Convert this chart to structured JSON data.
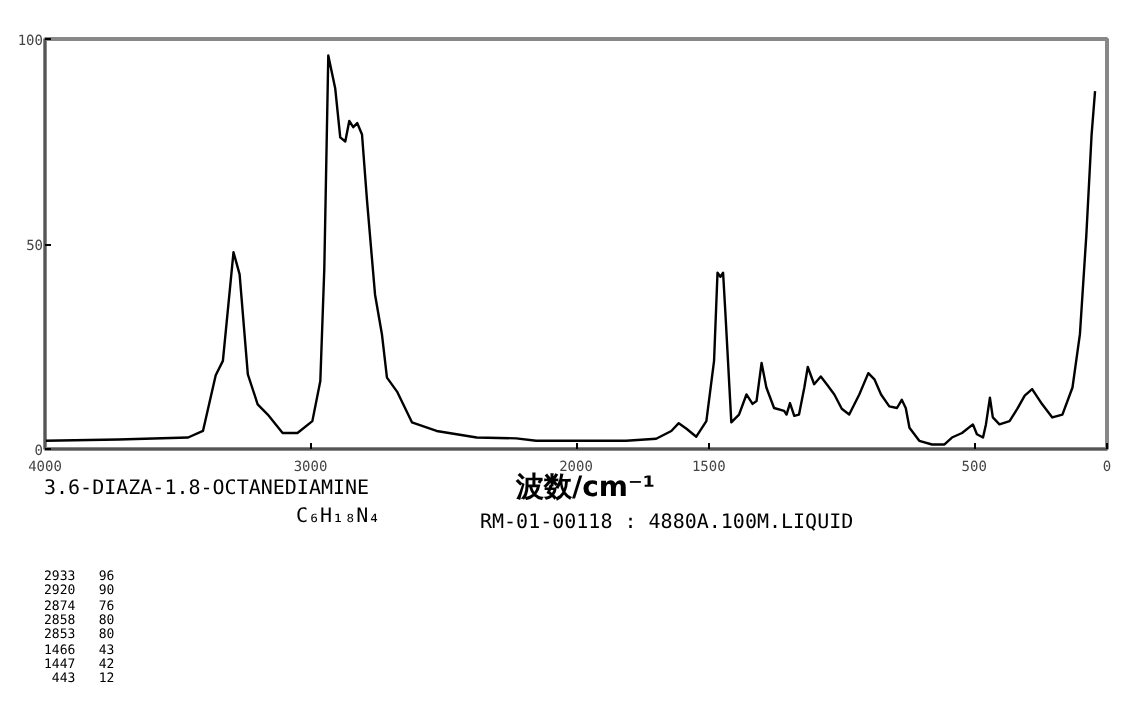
{
  "chart_data": {
    "type": "line",
    "xlabel": "波数/cm⁻¹",
    "x": [
      4000,
      3723,
      3461,
      3405,
      3357,
      3330,
      3290,
      3267,
      3236,
      3199,
      3161,
      3105,
      3049,
      2993,
      2963,
      2948,
      2933,
      2907,
      2888,
      2869,
      2854,
      2839,
      2824,
      2806,
      2787,
      2757,
      2731,
      2712,
      2674,
      2618,
      2525,
      2374,
      2225,
      2150,
      2000,
      1811,
      1698,
      1641,
      1613,
      1585,
      1547,
      1509,
      1480,
      1467,
      1456,
      1446,
      1437,
      1415,
      1386,
      1358,
      1335,
      1320,
      1301,
      1283,
      1254,
      1216,
      1207,
      1194,
      1178,
      1160,
      1140,
      1127,
      1103,
      1078,
      1052,
      1027,
      999,
      971,
      933,
      899,
      876,
      851,
      820,
      791,
      773,
      758,
      744,
      707,
      659,
      612,
      584,
      546,
      505,
      490,
      467,
      456,
      441,
      430,
      405,
      367,
      338,
      310,
      282,
      244,
      206,
      168,
      130,
      102,
      78,
      58,
      45
    ],
    "series": [
      {
        "color": "#000000",
        "values": [
          2,
          2.3,
          2.8,
          4.4,
          18,
          21.5,
          48,
          42.6,
          18.2,
          10.9,
          8.4,
          3.9,
          3.9,
          6.8,
          16.6,
          44,
          96,
          88,
          76,
          75,
          80,
          78.5,
          79.5,
          76.7,
          60.5,
          37.7,
          28,
          17.4,
          14,
          6.5,
          4.4,
          2.8,
          2.6,
          2,
          2,
          2,
          2.5,
          4.4,
          6.3,
          5,
          3,
          6.8,
          21.5,
          43,
          42,
          43,
          32.8,
          6.5,
          8.4,
          13.3,
          11,
          11.7,
          21,
          15,
          10,
          9.3,
          8.4,
          11.2,
          8.1,
          8.4,
          15,
          20,
          15.8,
          17.7,
          15.5,
          13.3,
          9.8,
          8.4,
          13.3,
          18.5,
          17,
          13.3,
          10.4,
          10,
          12,
          10,
          5.2,
          2,
          1.1,
          1.1,
          2.8,
          3.9,
          6,
          3.6,
          2.8,
          6,
          12.5,
          7.7,
          6,
          6.8,
          9.8,
          13,
          14.6,
          10.9,
          7.7,
          8.4,
          15,
          28,
          52,
          76.7,
          87.3
        ]
      }
    ],
    "xlim": [
      4000,
      0
    ],
    "xticks": [
      4000,
      3000,
      2000,
      1500,
      500,
      0
    ],
    "ylim": [
      0,
      100
    ],
    "yticks": [
      0,
      50,
      100
    ],
    "grid": false,
    "marker": "none",
    "line_style": "solid",
    "annotations": [
      "3.6-DIAZA-1.8-OCTANEDIAMINE",
      "C₆H₁₈N₄",
      "RM-01-00118 : 4880A.100M.LIQUID",
      "2933   96",
      "2920   90",
      "2874   76",
      "2858   80",
      "2853   80",
      "1466   43",
      "1447   42",
      " 443   12"
    ]
  }
}
